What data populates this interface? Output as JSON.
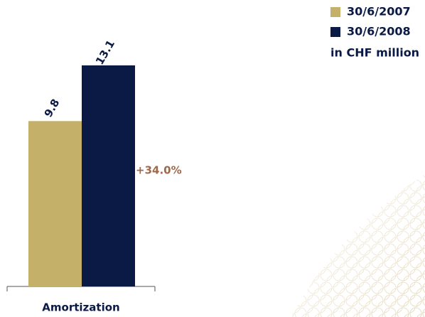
{
  "chart_data": {
    "type": "bar",
    "categories": [
      "Amortization"
    ],
    "series": [
      {
        "name": "30/6/2007",
        "color": "#c4b068",
        "values": [
          9.8
        ]
      },
      {
        "name": "30/6/2008",
        "color": "#0a1a45",
        "values": [
          13.1
        ]
      }
    ],
    "annotation": "+34.0%",
    "unit_note": "in CHF million",
    "legend": "top-right"
  }
}
